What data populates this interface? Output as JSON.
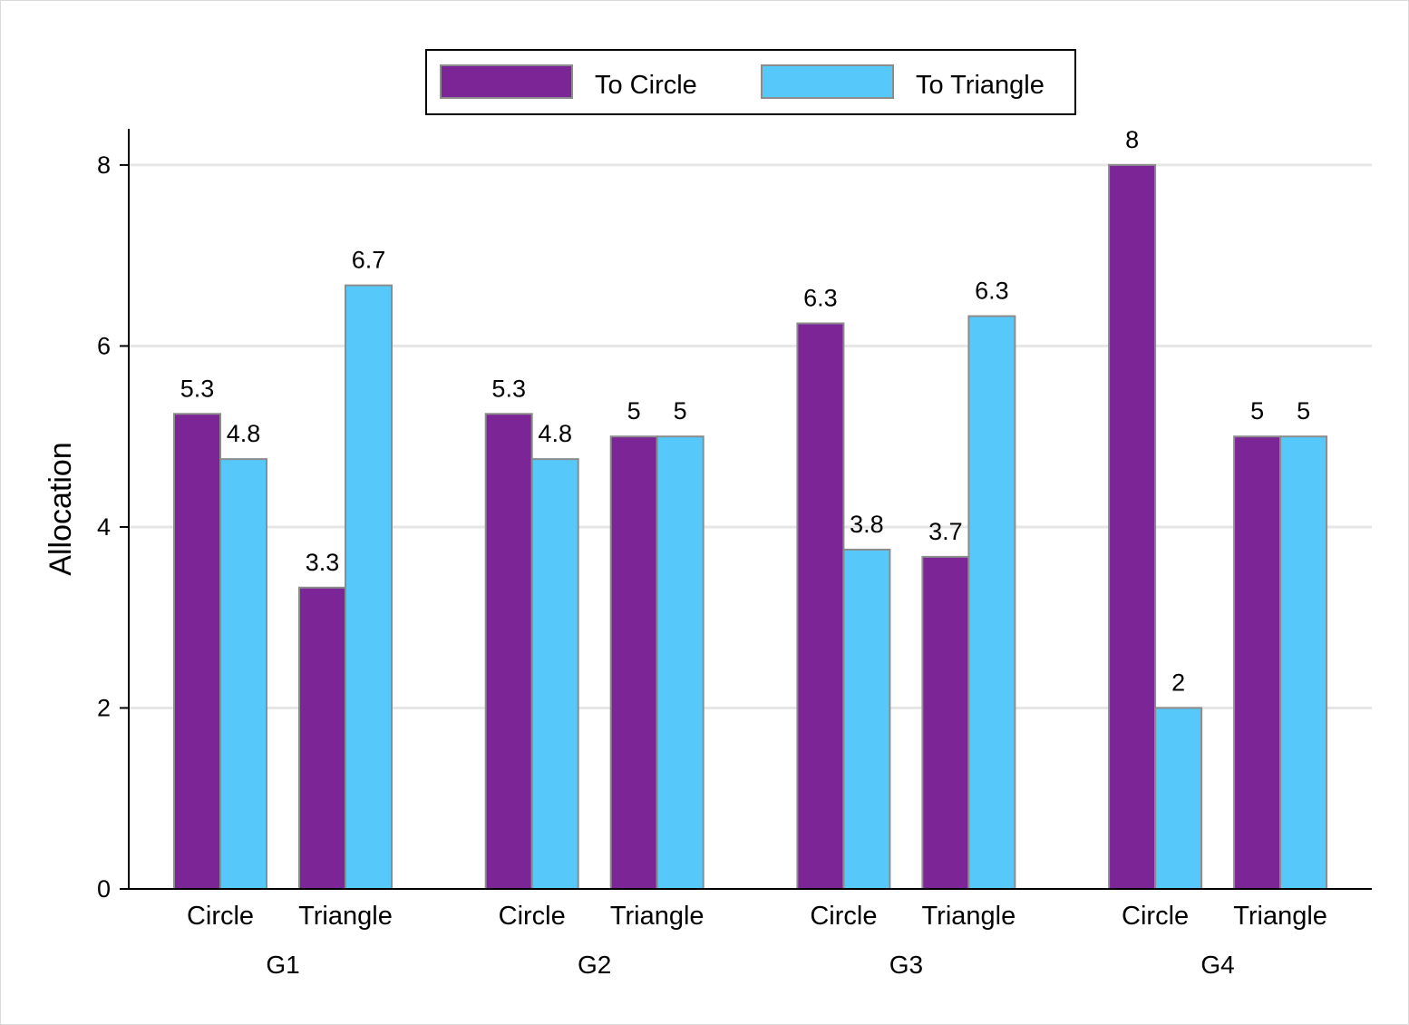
{
  "chart_data": {
    "type": "bar",
    "ylabel": "Allocation",
    "ylim": [
      0,
      8.4
    ],
    "yticks": [
      0,
      2,
      4,
      6,
      8
    ],
    "grid": true,
    "legend_position": "top",
    "groups": [
      {
        "name": "G1",
        "categories": [
          {
            "name": "Circle",
            "values": [
              5.25,
              4.75
            ],
            "labels": [
              "5.3",
              "4.8"
            ]
          },
          {
            "name": "Triangle",
            "values": [
              3.33,
              6.67
            ],
            "labels": [
              "3.3",
              "6.7"
            ]
          }
        ]
      },
      {
        "name": "G2",
        "categories": [
          {
            "name": "Circle",
            "values": [
              5.25,
              4.75
            ],
            "labels": [
              "5.3",
              "4.8"
            ]
          },
          {
            "name": "Triangle",
            "values": [
              5,
              5
            ],
            "labels": [
              "5",
              "5"
            ]
          }
        ]
      },
      {
        "name": "G3",
        "categories": [
          {
            "name": "Circle",
            "values": [
              6.25,
              3.75
            ],
            "labels": [
              "6.3",
              "3.8"
            ]
          },
          {
            "name": "Triangle",
            "values": [
              3.67,
              6.33
            ],
            "labels": [
              "3.7",
              "6.3"
            ]
          }
        ]
      },
      {
        "name": "G4",
        "categories": [
          {
            "name": "Circle",
            "values": [
              8,
              2
            ],
            "labels": [
              "8",
              "2"
            ]
          },
          {
            "name": "Triangle",
            "values": [
              5,
              5
            ],
            "labels": [
              "5",
              "5"
            ]
          }
        ]
      }
    ],
    "series": [
      {
        "name": "To Circle",
        "color": "#7b2597"
      },
      {
        "name": "To Triangle",
        "color": "#56c8f9"
      }
    ]
  }
}
